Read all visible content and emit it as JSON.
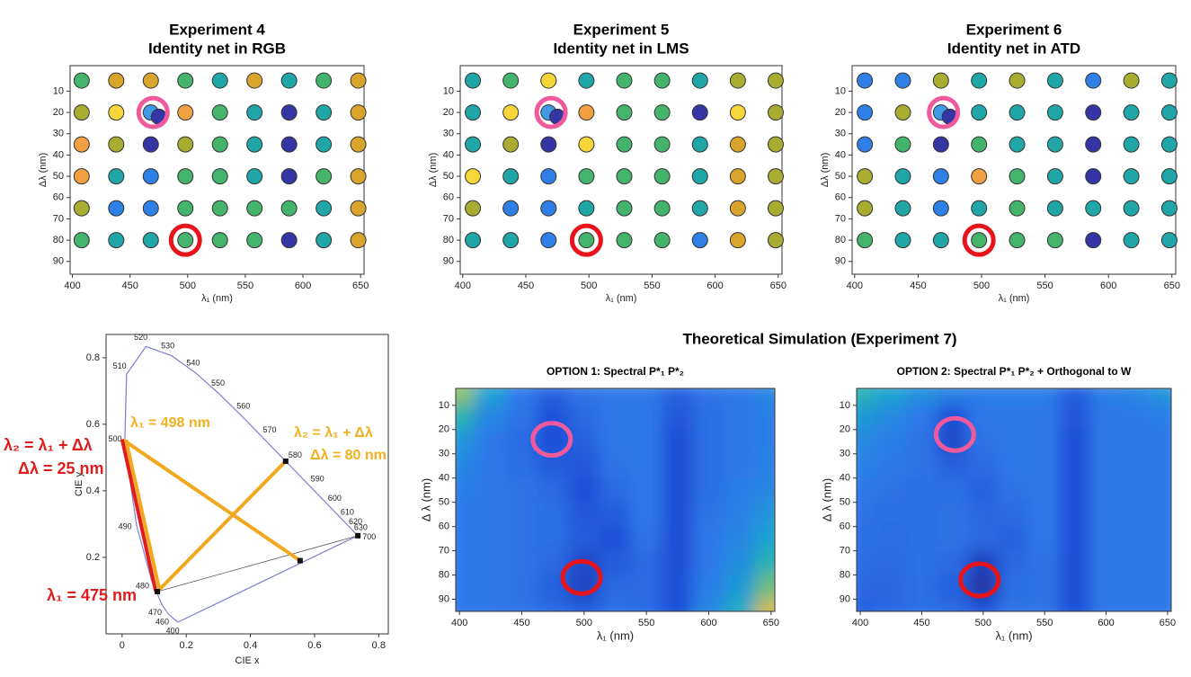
{
  "section_title": "Theoretical Simulation (Experiment 7)",
  "chart_data": [
    {
      "type": "scatter",
      "title": "Experiment 4",
      "subtitle": "Identity net in RGB",
      "xlabel": "λ₁ (nm)",
      "ylabel": "Δλ (nm)",
      "xlim": [
        398,
        653
      ],
      "ylim": [
        -2,
        96
      ],
      "yaxis_reversed": true,
      "xticks": [
        400,
        450,
        500,
        550,
        600,
        650
      ],
      "yticks": [
        10,
        20,
        30,
        40,
        50,
        60,
        70,
        80,
        90
      ],
      "x": [
        408,
        438,
        468,
        498,
        528,
        558,
        588,
        618,
        648,
        408,
        438,
        468,
        498,
        528,
        558,
        588,
        618,
        648,
        408,
        438,
        468,
        498,
        528,
        558,
        588,
        618,
        648,
        408,
        438,
        468,
        498,
        528,
        558,
        588,
        618,
        648,
        408,
        438,
        468,
        498,
        528,
        558,
        588,
        618,
        648,
        408,
        438,
        468,
        498,
        528,
        558,
        588,
        618,
        648,
        475
      ],
      "y": [
        5,
        5,
        5,
        5,
        5,
        5,
        5,
        5,
        5,
        20,
        20,
        20,
        20,
        20,
        20,
        20,
        20,
        20,
        35,
        35,
        35,
        35,
        35,
        35,
        35,
        35,
        35,
        50,
        50,
        50,
        50,
        50,
        50,
        50,
        50,
        50,
        65,
        65,
        65,
        65,
        65,
        65,
        65,
        65,
        65,
        80,
        80,
        80,
        80,
        80,
        80,
        80,
        80,
        80,
        22
      ],
      "colors": [
        "#44b46c",
        "#d8a42c",
        "#d8a42c",
        "#44b46c",
        "#20a6a6",
        "#d8a42c",
        "#20a6a6",
        "#44b46c",
        "#d8a42c",
        "#a8ac30",
        "#f6d63a",
        "#3f99e6",
        "#f0a040",
        "#44b46c",
        "#20a6a6",
        "#3535a5",
        "#20a6a6",
        "#d8a42c",
        "#f0a040",
        "#a8ac30",
        "#3535a5",
        "#a8ac30",
        "#44b46c",
        "#20a6a6",
        "#3535a5",
        "#20a6a6",
        "#d8a42c",
        "#f0a040",
        "#20a6a6",
        "#2e7fe6",
        "#44b46c",
        "#44b46c",
        "#20a6a6",
        "#3535a5",
        "#44b46c",
        "#d8a42c",
        "#a8ac30",
        "#2e7fe6",
        "#2e7fe6",
        "#44b46c",
        "#44b46c",
        "#44b46c",
        "#44b46c",
        "#20a6a6",
        "#d8a42c",
        "#44b46c",
        "#20a6a6",
        "#20a6a6",
        "#44b46c",
        "#44b46c",
        "#44b46c",
        "#3535a5",
        "#20a6a6",
        "#d8a42c",
        "#3535a5"
      ],
      "highlights": [
        {
          "x": 470,
          "y": 20,
          "color": "#ee5a9c"
        },
        {
          "x": 498,
          "y": 80,
          "color": "#e8141c"
        }
      ]
    },
    {
      "type": "scatter",
      "title": "Experiment 5",
      "subtitle": "Identity net in LMS",
      "xlabel": "λ₁ (nm)",
      "ylabel": "Δλ (nm)",
      "xlim": [
        398,
        653
      ],
      "ylim": [
        -2,
        96
      ],
      "yaxis_reversed": true,
      "xticks": [
        400,
        450,
        500,
        550,
        600,
        650
      ],
      "yticks": [
        10,
        20,
        30,
        40,
        50,
        60,
        70,
        80,
        90
      ],
      "x": [
        408,
        438,
        468,
        498,
        528,
        558,
        588,
        618,
        648,
        408,
        438,
        468,
        498,
        528,
        558,
        588,
        618,
        648,
        408,
        438,
        468,
        498,
        528,
        558,
        588,
        618,
        648,
        408,
        438,
        468,
        498,
        528,
        558,
        588,
        618,
        648,
        408,
        438,
        468,
        498,
        528,
        558,
        588,
        618,
        648,
        408,
        438,
        468,
        498,
        528,
        558,
        588,
        618,
        648,
        475
      ],
      "y": [
        5,
        5,
        5,
        5,
        5,
        5,
        5,
        5,
        5,
        20,
        20,
        20,
        20,
        20,
        20,
        20,
        20,
        20,
        35,
        35,
        35,
        35,
        35,
        35,
        35,
        35,
        35,
        50,
        50,
        50,
        50,
        50,
        50,
        50,
        50,
        50,
        65,
        65,
        65,
        65,
        65,
        65,
        65,
        65,
        65,
        80,
        80,
        80,
        80,
        80,
        80,
        80,
        80,
        80,
        22
      ],
      "colors": [
        "#20a6a6",
        "#44b46c",
        "#f6d63a",
        "#20a6a6",
        "#44b46c",
        "#44b46c",
        "#20a6a6",
        "#a8ac30",
        "#a8ac30",
        "#20a6a6",
        "#f6d63a",
        "#3f99e6",
        "#f0a040",
        "#44b46c",
        "#44b46c",
        "#3535a5",
        "#f6d63a",
        "#a8ac30",
        "#20a6a6",
        "#a8ac30",
        "#3535a5",
        "#f6d63a",
        "#44b46c",
        "#44b46c",
        "#20a6a6",
        "#d8a42c",
        "#a8ac30",
        "#f6d63a",
        "#20a6a6",
        "#2e7fe6",
        "#44b46c",
        "#44b46c",
        "#44b46c",
        "#20a6a6",
        "#d8a42c",
        "#a8ac30",
        "#a8ac30",
        "#2e7fe6",
        "#2e7fe6",
        "#20a6a6",
        "#44b46c",
        "#44b46c",
        "#20a6a6",
        "#d8a42c",
        "#a8ac30",
        "#20a6a6",
        "#20a6a6",
        "#2e7fe6",
        "#44b46c",
        "#44b46c",
        "#44b46c",
        "#2e7fe6",
        "#d8a42c",
        "#a8ac30",
        "#3535a5"
      ],
      "highlights": [
        {
          "x": 470,
          "y": 20,
          "color": "#ee5a9c"
        },
        {
          "x": 498,
          "y": 80,
          "color": "#e8141c"
        }
      ]
    },
    {
      "type": "scatter",
      "title": "Experiment 6",
      "subtitle": "Identity net in ATD",
      "xlabel": "λ₁ (nm)",
      "ylabel": "Δλ (nm)",
      "xlim": [
        398,
        653
      ],
      "ylim": [
        -2,
        96
      ],
      "yaxis_reversed": true,
      "xticks": [
        400,
        450,
        500,
        550,
        600,
        650
      ],
      "yticks": [
        10,
        20,
        30,
        40,
        50,
        60,
        70,
        80,
        90
      ],
      "x": [
        408,
        438,
        468,
        498,
        528,
        558,
        588,
        618,
        648,
        408,
        438,
        468,
        498,
        528,
        558,
        588,
        618,
        648,
        408,
        438,
        468,
        498,
        528,
        558,
        588,
        618,
        648,
        408,
        438,
        468,
        498,
        528,
        558,
        588,
        618,
        648,
        408,
        438,
        468,
        498,
        528,
        558,
        588,
        618,
        648,
        408,
        438,
        468,
        498,
        528,
        558,
        588,
        618,
        648,
        475
      ],
      "y": [
        5,
        5,
        5,
        5,
        5,
        5,
        5,
        5,
        5,
        20,
        20,
        20,
        20,
        20,
        20,
        20,
        20,
        20,
        35,
        35,
        35,
        35,
        35,
        35,
        35,
        35,
        35,
        50,
        50,
        50,
        50,
        50,
        50,
        50,
        50,
        50,
        65,
        65,
        65,
        65,
        65,
        65,
        65,
        65,
        65,
        80,
        80,
        80,
        80,
        80,
        80,
        80,
        80,
        80,
        22
      ],
      "colors": [
        "#2e7fe6",
        "#2e7fe6",
        "#a8ac30",
        "#20a6a6",
        "#a8ac30",
        "#20a6a6",
        "#2e7fe6",
        "#a8ac30",
        "#20a6a6",
        "#2e7fe6",
        "#a8ac30",
        "#3f99e6",
        "#20a6a6",
        "#20a6a6",
        "#20a6a6",
        "#3535a5",
        "#20a6a6",
        "#20a6a6",
        "#2e7fe6",
        "#44b46c",
        "#3535a5",
        "#44b46c",
        "#20a6a6",
        "#20a6a6",
        "#3535a5",
        "#20a6a6",
        "#20a6a6",
        "#a8ac30",
        "#20a6a6",
        "#2e7fe6",
        "#f0a040",
        "#44b46c",
        "#20a6a6",
        "#3535a5",
        "#20a6a6",
        "#20a6a6",
        "#a8ac30",
        "#20a6a6",
        "#2e7fe6",
        "#20a6a6",
        "#44b46c",
        "#20a6a6",
        "#20a6a6",
        "#20a6a6",
        "#20a6a6",
        "#44b46c",
        "#20a6a6",
        "#20a6a6",
        "#44b46c",
        "#44b46c",
        "#44b46c",
        "#3535a5",
        "#20a6a6",
        "#20a6a6",
        "#3535a5"
      ],
      "highlights": [
        {
          "x": 470,
          "y": 20,
          "color": "#ee5a9c"
        },
        {
          "x": 498,
          "y": 80,
          "color": "#e8141c"
        }
      ]
    },
    {
      "type": "chromaticity",
      "xlabel": "CIE x",
      "ylabel": "CIE y",
      "xlim": [
        -0.05,
        0.83
      ],
      "ylim": [
        -0.03,
        0.87
      ],
      "xticks": [
        0,
        0.2,
        0.4,
        0.6,
        0.8
      ],
      "yticks": [
        0.2,
        0.4,
        0.6,
        0.8
      ],
      "locus": {
        "wavelengths": [
          400,
          460,
          470,
          480,
          490,
          500,
          510,
          520,
          530,
          540,
          550,
          560,
          570,
          580,
          590,
          600,
          610,
          620,
          630,
          700
        ],
        "x": [
          0.1733,
          0.144,
          0.1241,
          0.0913,
          0.0454,
          0.0082,
          0.0139,
          0.0743,
          0.1547,
          0.2296,
          0.3016,
          0.3731,
          0.4441,
          0.5125,
          0.5752,
          0.627,
          0.6658,
          0.6915,
          0.7079,
          0.7347
        ],
        "y": [
          0.0048,
          0.0297,
          0.0578,
          0.1327,
          0.295,
          0.5384,
          0.7502,
          0.8338,
          0.8059,
          0.7543,
          0.6923,
          0.6245,
          0.5547,
          0.4866,
          0.4242,
          0.3725,
          0.334,
          0.3083,
          0.292,
          0.2653
        ],
        "color": "#7f7fd0"
      },
      "lines": [
        {
          "x": [
            0.11,
            0.735
          ],
          "y": [
            0.097,
            0.265
          ],
          "color": "#555555",
          "thin": true
        },
        {
          "x": [
            0.005,
            0.555
          ],
          "y": [
            0.552,
            0.19
          ],
          "color": "#f2a81e"
        },
        {
          "x": [
            0.0,
            0.105
          ],
          "y": [
            0.555,
            0.097
          ],
          "color": "#e01c1c"
        },
        {
          "x": [
            0.012,
            0.117
          ],
          "y": [
            0.553,
            0.1
          ],
          "color": "#f2a81e"
        },
        {
          "x": [
            0.11,
            0.51
          ],
          "y": [
            0.097,
            0.489
          ],
          "color": "#f2a81e"
        }
      ],
      "markers": {
        "x": [
          0.11,
          0.51,
          0.555,
          0.735
        ],
        "y": [
          0.097,
          0.489,
          0.19,
          0.265
        ]
      },
      "annotations": [
        {
          "text": "λ₁ = 498 nm",
          "color": "#f2b01e"
        },
        {
          "text": "λ₂ = λ₁ + Δλ",
          "color": "#f2b01e"
        },
        {
          "text": "Δλ = 80 nm",
          "color": "#f2b01e"
        },
        {
          "text": "λ₂ = λ₁ + Δλ",
          "color": "#e01c1c"
        },
        {
          "text": "Δλ = 25 nm",
          "color": "#e01c1c"
        },
        {
          "text": "λ₁ = 475 nm",
          "color": "#e01c1c"
        }
      ]
    },
    {
      "type": "heatmap",
      "title": "OPTION 1: Spectral P*₁ P*₂",
      "xlabel": "λ₁ (nm)",
      "ylabel": "Δ λ (nm)",
      "xlim": [
        397,
        653
      ],
      "ylim": [
        3,
        95
      ],
      "yaxis_reversed": true,
      "xticks": [
        400,
        450,
        500,
        550,
        600,
        650
      ],
      "yticks": [
        10,
        20,
        30,
        40,
        50,
        60,
        70,
        80,
        90
      ],
      "x": [
        400,
        425,
        450,
        475,
        500,
        525,
        550,
        575,
        600,
        625,
        650
      ],
      "y": [
        5,
        15,
        25,
        35,
        45,
        55,
        65,
        75,
        85,
        95
      ],
      "z": [
        [
          0.75,
          0.45,
          0.3,
          0.22,
          0.28,
          0.3,
          0.3,
          0.22,
          0.28,
          0.3,
          0.35
        ],
        [
          0.55,
          0.35,
          0.28,
          0.15,
          0.25,
          0.3,
          0.3,
          0.18,
          0.27,
          0.3,
          0.32
        ],
        [
          0.4,
          0.3,
          0.25,
          0.15,
          0.22,
          0.3,
          0.3,
          0.15,
          0.27,
          0.3,
          0.32
        ],
        [
          0.35,
          0.3,
          0.27,
          0.2,
          0.18,
          0.28,
          0.3,
          0.15,
          0.27,
          0.3,
          0.33
        ],
        [
          0.32,
          0.3,
          0.28,
          0.25,
          0.15,
          0.25,
          0.3,
          0.15,
          0.27,
          0.32,
          0.35
        ],
        [
          0.3,
          0.3,
          0.28,
          0.27,
          0.18,
          0.2,
          0.3,
          0.15,
          0.28,
          0.33,
          0.4
        ],
        [
          0.3,
          0.3,
          0.28,
          0.27,
          0.2,
          0.15,
          0.28,
          0.15,
          0.3,
          0.35,
          0.45
        ],
        [
          0.3,
          0.3,
          0.28,
          0.25,
          0.12,
          0.2,
          0.25,
          0.15,
          0.3,
          0.38,
          0.55
        ],
        [
          0.3,
          0.3,
          0.28,
          0.22,
          0.1,
          0.25,
          0.25,
          0.15,
          0.32,
          0.42,
          0.7
        ],
        [
          0.3,
          0.3,
          0.28,
          0.25,
          0.2,
          0.27,
          0.25,
          0.15,
          0.35,
          0.5,
          0.85
        ]
      ],
      "colormap": [
        [
          0,
          "#2a2a8c"
        ],
        [
          0.15,
          "#1f4fd8"
        ],
        [
          0.3,
          "#2f78ea"
        ],
        [
          0.45,
          "#1aa3d2"
        ],
        [
          0.6,
          "#2fb8a0"
        ],
        [
          0.75,
          "#8cc06c"
        ],
        [
          0.88,
          "#e0b84a"
        ],
        [
          1,
          "#f8e030"
        ]
      ],
      "highlights": [
        {
          "x": 474,
          "y": 24,
          "color": "#ee5a9c"
        },
        {
          "x": 498,
          "y": 81,
          "color": "#e8141c"
        }
      ]
    },
    {
      "type": "heatmap",
      "title": "OPTION 2: Spectral P*₁ P*₂ + Orthogonal to W",
      "xlabel": "λ₁ (nm)",
      "ylabel": "Δ λ (nm)",
      "xlim": [
        397,
        653
      ],
      "ylim": [
        3,
        95
      ],
      "yaxis_reversed": true,
      "xticks": [
        400,
        450,
        500,
        550,
        600,
        650
      ],
      "yticks": [
        10,
        20,
        30,
        40,
        50,
        60,
        70,
        80,
        90
      ],
      "x": [
        400,
        425,
        450,
        475,
        500,
        525,
        550,
        575,
        600,
        625,
        650
      ],
      "y": [
        5,
        15,
        25,
        35,
        45,
        55,
        65,
        75,
        85,
        95
      ],
      "z": [
        [
          0.55,
          0.45,
          0.38,
          0.33,
          0.32,
          0.32,
          0.32,
          0.2,
          0.32,
          0.35,
          0.4
        ],
        [
          0.42,
          0.36,
          0.3,
          0.15,
          0.3,
          0.3,
          0.3,
          0.17,
          0.3,
          0.3,
          0.32
        ],
        [
          0.36,
          0.32,
          0.28,
          0.12,
          0.28,
          0.3,
          0.3,
          0.15,
          0.3,
          0.3,
          0.3
        ],
        [
          0.33,
          0.3,
          0.28,
          0.22,
          0.25,
          0.3,
          0.3,
          0.15,
          0.3,
          0.3,
          0.3
        ],
        [
          0.3,
          0.28,
          0.27,
          0.27,
          0.22,
          0.28,
          0.3,
          0.15,
          0.3,
          0.3,
          0.3
        ],
        [
          0.28,
          0.27,
          0.27,
          0.28,
          0.24,
          0.25,
          0.3,
          0.15,
          0.3,
          0.3,
          0.3
        ],
        [
          0.27,
          0.26,
          0.27,
          0.28,
          0.25,
          0.22,
          0.3,
          0.15,
          0.3,
          0.3,
          0.3
        ],
        [
          0.26,
          0.25,
          0.27,
          0.25,
          0.1,
          0.24,
          0.28,
          0.15,
          0.3,
          0.3,
          0.3
        ],
        [
          0.24,
          0.24,
          0.27,
          0.22,
          0.05,
          0.27,
          0.28,
          0.15,
          0.3,
          0.3,
          0.3
        ],
        [
          0.22,
          0.24,
          0.27,
          0.25,
          0.18,
          0.28,
          0.28,
          0.15,
          0.3,
          0.3,
          0.3
        ]
      ],
      "colormap": [
        [
          0,
          "#2a2a8c"
        ],
        [
          0.15,
          "#1f4fd8"
        ],
        [
          0.3,
          "#2f78ea"
        ],
        [
          0.45,
          "#1aa3d2"
        ],
        [
          0.6,
          "#2fb8a0"
        ],
        [
          0.75,
          "#8cc06c"
        ],
        [
          0.88,
          "#e0b84a"
        ],
        [
          1,
          "#f8e030"
        ]
      ],
      "highlights": [
        {
          "x": 477,
          "y": 22,
          "color": "#ee5a9c"
        },
        {
          "x": 497,
          "y": 82,
          "color": "#e8141c"
        }
      ]
    }
  ]
}
